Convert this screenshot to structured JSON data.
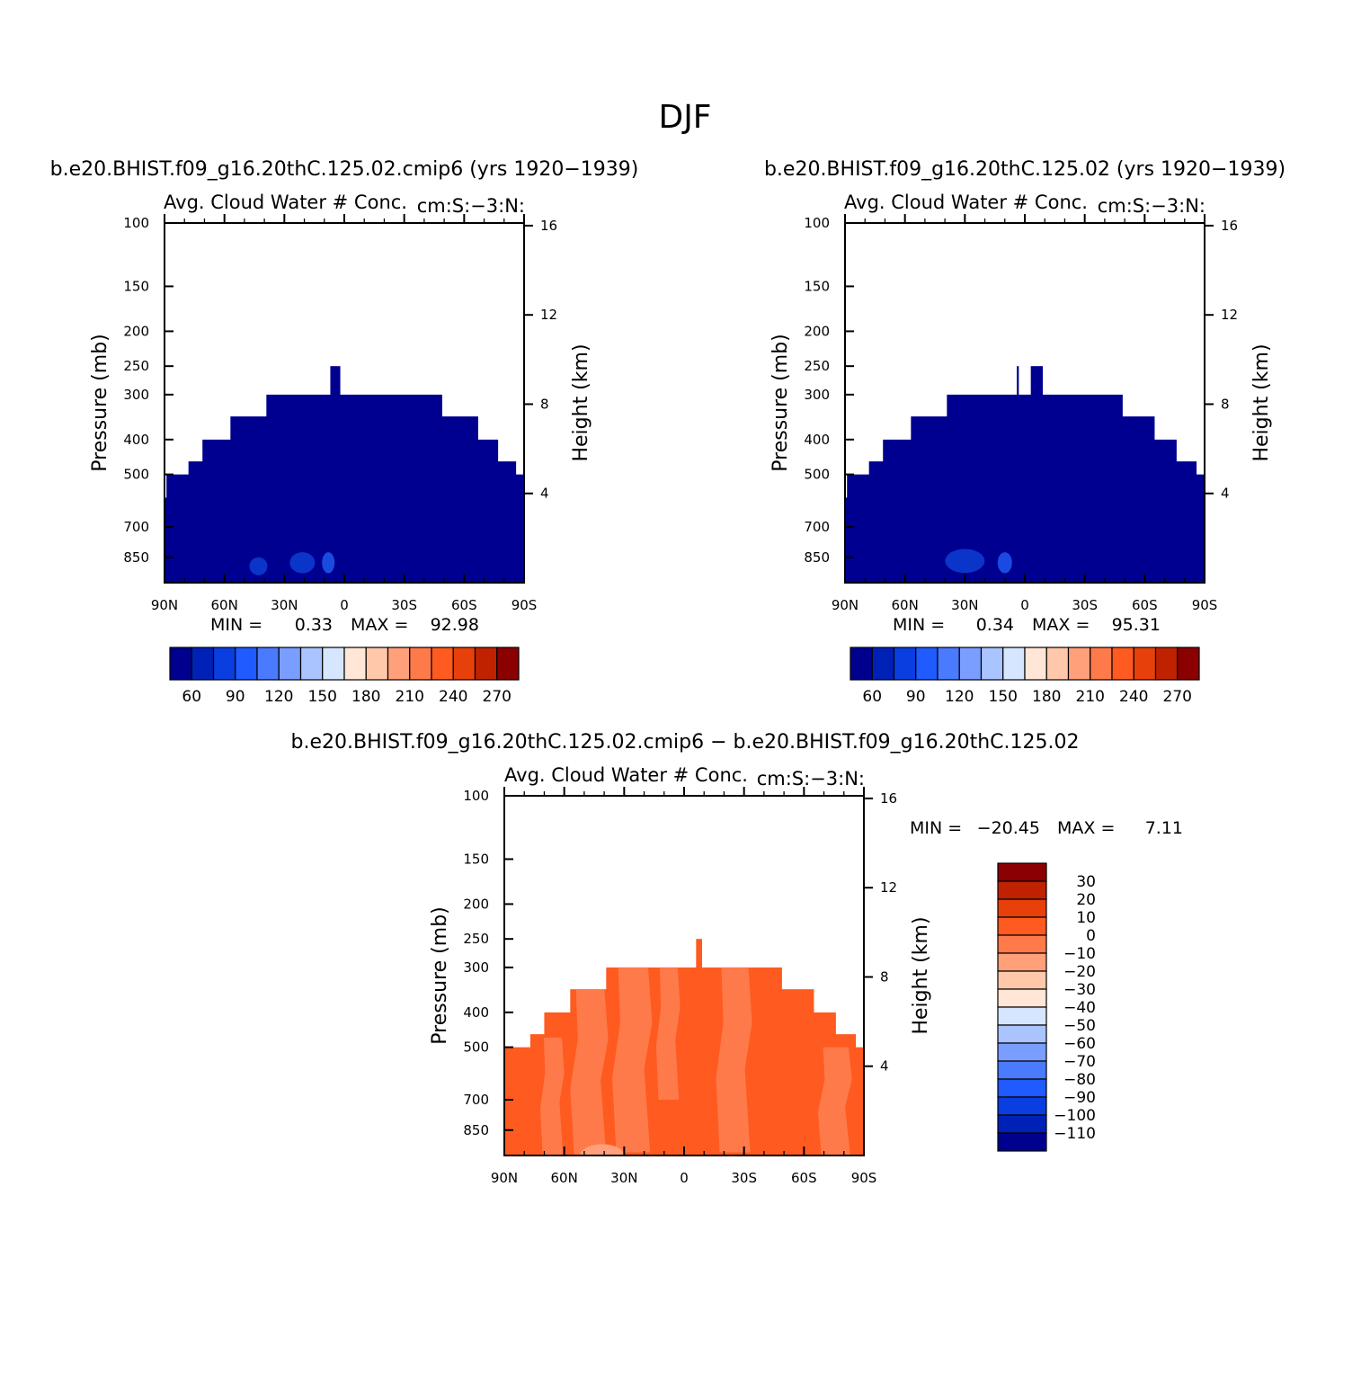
{
  "page_title": "DJF",
  "chart_data": [
    {
      "type": "heatmap",
      "id": "panel-1",
      "case_title": "b.e20.BHIST.f09_g16.20thC.125.02.cmip6 (yrs 1920−1939)",
      "left_string": "Avg. Cloud Water # Conc.",
      "right_string": "cm:S:−3:N:",
      "ylabel": "Pressure (mb)",
      "ylabel_right": "Height (km)",
      "xlabel": "",
      "x_ticks": [
        "90N",
        "60N",
        "30N",
        "0",
        "30S",
        "60S",
        "90S"
      ],
      "y_ticks": [
        100,
        150,
        200,
        250,
        300,
        400,
        500,
        700,
        850
      ],
      "y_right_ticks": [
        4,
        8,
        12,
        16
      ],
      "ylim": [
        1000,
        100
      ],
      "y_scale": "log",
      "xlim": [
        90,
        -90
      ],
      "min_label": "MIN =",
      "min_value": "0.33",
      "max_label": "MAX =",
      "max_value": "92.98",
      "colorbar": {
        "orientation": "horizontal",
        "labels": [
          "60",
          "90",
          "120",
          "150",
          "180",
          "210",
          "240",
          "270"
        ],
        "colors": [
          "#00008f",
          "#0021b8",
          "#0a3ee0",
          "#1f5bff",
          "#4a7bff",
          "#7a9eff",
          "#aac4ff",
          "#d6e6ff",
          "#ffe6d6",
          "#ffc8aa",
          "#ffa07a",
          "#ff7a4a",
          "#ff5a1f",
          "#e8400a",
          "#c02200",
          "#8b0000"
        ]
      },
      "field": {
        "fill": "#000090",
        "profile": [
          {
            "lat_from": 90,
            "lat_to": 89,
            "top_p": 580
          },
          {
            "lat_from": 89,
            "lat_to": 78,
            "top_p": 500
          },
          {
            "lat_from": 78,
            "lat_to": 71,
            "top_p": 460
          },
          {
            "lat_from": 71,
            "lat_to": 57,
            "top_p": 400
          },
          {
            "lat_from": 57,
            "lat_to": 39,
            "top_p": 345
          },
          {
            "lat_from": 39,
            "lat_to": -49,
            "top_p": 300
          },
          {
            "lat_from": -49,
            "lat_to": -67,
            "top_p": 345
          },
          {
            "lat_from": -67,
            "lat_to": -77,
            "top_p": 400
          },
          {
            "lat_from": -77,
            "lat_to": -86,
            "top_p": 460
          },
          {
            "lat_from": -86,
            "lat_to": -90,
            "top_p": 500
          }
        ],
        "spike": {
          "lat_from": 7,
          "lat_to": 2,
          "top_p": 250
        },
        "patches": [
          {
            "lat": 21,
            "p": 880,
            "w": 14,
            "h": 70,
            "color": "#0a35c8"
          },
          {
            "lat": 43,
            "p": 900,
            "w": 10,
            "h": 60,
            "color": "#0a35c8"
          },
          {
            "lat": 8,
            "p": 880,
            "w": 7,
            "h": 70,
            "color": "#1a4be0"
          }
        ]
      }
    },
    {
      "type": "heatmap",
      "id": "panel-2",
      "case_title": "b.e20.BHIST.f09_g16.20thC.125.02 (yrs 1920−1939)",
      "left_string": "Avg. Cloud Water # Conc.",
      "right_string": "cm:S:−3:N:",
      "ylabel": "Pressure (mb)",
      "ylabel_right": "Height (km)",
      "xlabel": "",
      "x_ticks": [
        "90N",
        "60N",
        "30N",
        "0",
        "30S",
        "60S",
        "90S"
      ],
      "y_ticks": [
        100,
        150,
        200,
        250,
        300,
        400,
        500,
        700,
        850
      ],
      "y_right_ticks": [
        4,
        8,
        12,
        16
      ],
      "ylim": [
        1000,
        100
      ],
      "y_scale": "log",
      "xlim": [
        90,
        -90
      ],
      "min_label": "MIN =",
      "min_value": "0.34",
      "max_label": "MAX =",
      "max_value": "95.31",
      "colorbar": {
        "orientation": "horizontal",
        "labels": [
          "60",
          "90",
          "120",
          "150",
          "180",
          "210",
          "240",
          "270"
        ],
        "colors": [
          "#00008f",
          "#0021b8",
          "#0a3ee0",
          "#1f5bff",
          "#4a7bff",
          "#7a9eff",
          "#aac4ff",
          "#d6e6ff",
          "#ffe6d6",
          "#ffc8aa",
          "#ffa07a",
          "#ff7a4a",
          "#ff5a1f",
          "#e8400a",
          "#c02200",
          "#8b0000"
        ]
      },
      "field": {
        "fill": "#000090",
        "profile": [
          {
            "lat_from": 90,
            "lat_to": 89,
            "top_p": 580
          },
          {
            "lat_from": 89,
            "lat_to": 78,
            "top_p": 500
          },
          {
            "lat_from": 78,
            "lat_to": 71,
            "top_p": 460
          },
          {
            "lat_from": 71,
            "lat_to": 57,
            "top_p": 400
          },
          {
            "lat_from": 57,
            "lat_to": 39,
            "top_p": 345
          },
          {
            "lat_from": 39,
            "lat_to": -49,
            "top_p": 300
          },
          {
            "lat_from": -49,
            "lat_to": -65,
            "top_p": 345
          },
          {
            "lat_from": -65,
            "lat_to": -76,
            "top_p": 400
          },
          {
            "lat_from": -76,
            "lat_to": -86,
            "top_p": 460
          },
          {
            "lat_from": -86,
            "lat_to": -90,
            "top_p": 500
          }
        ],
        "spikes": [
          {
            "lat_from": 4,
            "lat_to": 3,
            "top_p": 250
          },
          {
            "lat_from": -3,
            "lat_to": -9,
            "top_p": 250
          }
        ],
        "patches": [
          {
            "lat": 30,
            "p": 870,
            "w": 22,
            "h": 80,
            "color": "#0a35c8"
          },
          {
            "lat": 10,
            "p": 880,
            "w": 8,
            "h": 70,
            "color": "#1a4be0"
          }
        ]
      }
    },
    {
      "type": "heatmap",
      "id": "panel-diff",
      "case_title": "b.e20.BHIST.f09_g16.20thC.125.02.cmip6 − b.e20.BHIST.f09_g16.20thC.125.02",
      "left_string": "Avg. Cloud Water # Conc.",
      "right_string": "cm:S:−3:N:",
      "ylabel": "Pressure (mb)",
      "ylabel_right": "Height (km)",
      "xlabel": "",
      "x_ticks": [
        "90N",
        "60N",
        "30N",
        "0",
        "30S",
        "60S",
        "90S"
      ],
      "y_ticks": [
        100,
        150,
        200,
        250,
        300,
        400,
        500,
        700,
        850
      ],
      "y_right_ticks": [
        4,
        8,
        12,
        16
      ],
      "ylim": [
        1000,
        100
      ],
      "y_scale": "log",
      "xlim": [
        90,
        -90
      ],
      "min_label": "MIN =",
      "min_value": "−20.45",
      "max_label": "MAX =",
      "max_value": "7.11",
      "colorbar": {
        "orientation": "vertical",
        "labels": [
          "30",
          "20",
          "10",
          "0",
          "−10",
          "−20",
          "−30",
          "−40",
          "−50",
          "−60",
          "−70",
          "−80",
          "−90",
          "−100",
          "−110"
        ],
        "colors": [
          "#8b0000",
          "#c02200",
          "#e8400a",
          "#ff5a1f",
          "#ff7a4a",
          "#ffa07a",
          "#ffc8aa",
          "#ffe6d6",
          "#d6e6ff",
          "#aac4ff",
          "#7a9eff",
          "#4a7bff",
          "#1f5bff",
          "#0a3ee0",
          "#0021b8",
          "#00008f"
        ]
      },
      "field": {
        "fill": "#ff5a1f",
        "light": "#ff7a4a",
        "lightest": "#ffa07a",
        "profile": [
          {
            "lat_from": 90,
            "lat_to": 88,
            "top_p": 500
          },
          {
            "lat_from": 88,
            "lat_to": 77,
            "top_p": 500
          },
          {
            "lat_from": 77,
            "lat_to": 70,
            "top_p": 460
          },
          {
            "lat_from": 70,
            "lat_to": 57,
            "top_p": 400
          },
          {
            "lat_from": 57,
            "lat_to": 39,
            "top_p": 345
          },
          {
            "lat_from": 39,
            "lat_to": -49,
            "top_p": 300
          },
          {
            "lat_from": -49,
            "lat_to": -65,
            "top_p": 345
          },
          {
            "lat_from": -65,
            "lat_to": -76,
            "top_p": 400
          },
          {
            "lat_from": -76,
            "lat_to": -86,
            "top_p": 460
          },
          {
            "lat_from": -86,
            "lat_to": -90,
            "top_p": 500
          }
        ],
        "spike": {
          "lat_from": -6,
          "lat_to": -9,
          "top_p": 250
        },
        "light_regions": [
          {
            "lat_from": 72,
            "lat_to": 60,
            "p_top": 470,
            "p_bot": 1000
          },
          {
            "lat_from": 57,
            "lat_to": 38,
            "p_top": 345,
            "p_bot": 1000
          },
          {
            "lat_from": 36,
            "lat_to": 16,
            "p_top": 300,
            "p_bot": 980
          },
          {
            "lat_from": 14,
            "lat_to": 2,
            "p_top": 300,
            "p_bot": 700
          },
          {
            "lat_from": -16,
            "lat_to": -34,
            "p_top": 300,
            "p_bot": 980
          },
          {
            "lat_from": -67,
            "lat_to": -84,
            "p_top": 500,
            "p_bot": 1000
          }
        ],
        "lightest_regions": [
          {
            "lat_from": 52,
            "lat_to": 30,
            "p_top": 930,
            "p_bot": 1000
          }
        ]
      }
    }
  ]
}
